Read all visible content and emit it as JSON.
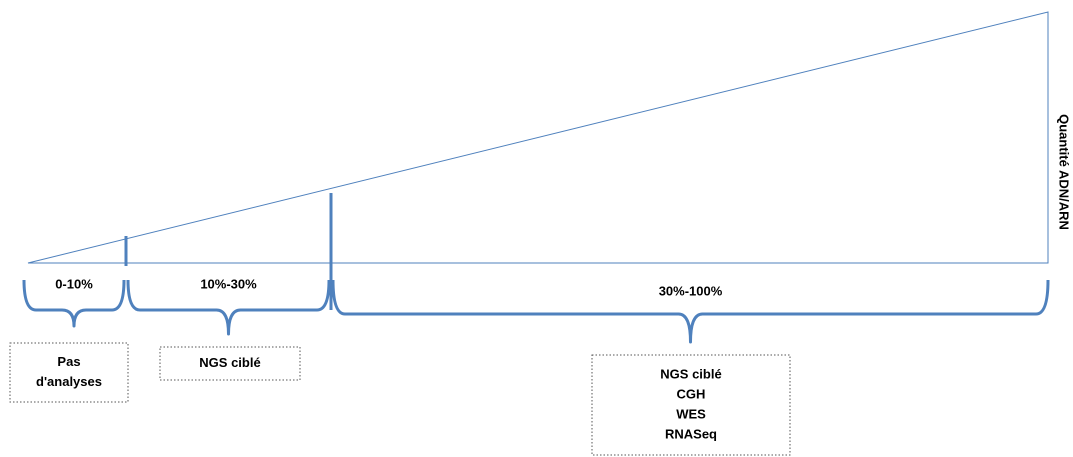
{
  "axis_label": "Quantité ADN/ARN",
  "ranges": [
    {
      "label": "0-10%",
      "methods": [
        "Pas",
        "d'analyses"
      ]
    },
    {
      "label": "10%-30%",
      "methods": [
        "NGS ciblé"
      ]
    },
    {
      "label": "30%-100%",
      "methods": [
        "NGS ciblé",
        "CGH",
        "WES",
        "RNASeq"
      ]
    }
  ]
}
